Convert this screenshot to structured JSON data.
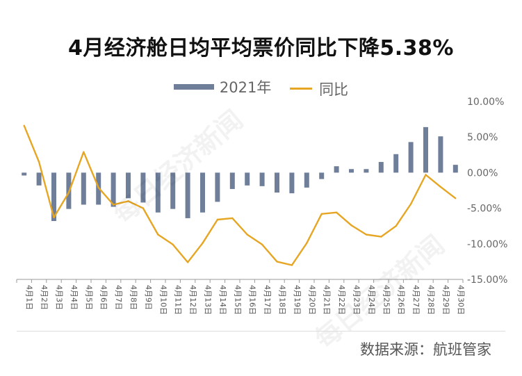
{
  "title": "4月经济舱日均平均票价同比下降5.38%",
  "source": "数据来源：航班管家",
  "watermark": "每日经济新闻",
  "colors": {
    "bar": "#6f7f9a",
    "line": "#e6a623",
    "axis": "#999999",
    "text": "#666666"
  },
  "chart_data": {
    "type": "bar+line",
    "categories": [
      "4月1日",
      "4月2日",
      "4月3日",
      "4月4日",
      "4月5日",
      "4月6日",
      "4月7日",
      "4月8日",
      "4月9日",
      "4月10日",
      "4月11日",
      "4月12日",
      "4月13日",
      "4月14日",
      "4月15日",
      "4月16日",
      "4月17日",
      "4月18日",
      "4月19日",
      "4月20日",
      "4月21日",
      "4月22日",
      "4月23日",
      "4月24日",
      "4月25日",
      "4月26日",
      "4月27日",
      "4月28日",
      "4月29日",
      "4月30日"
    ],
    "series": [
      {
        "name": "2021年",
        "type": "bar",
        "values": [
          -0.4,
          -1.8,
          -6.8,
          -5.1,
          -4.5,
          -4.5,
          -4.8,
          -3.6,
          -4.2,
          -5.6,
          -5.1,
          -6.4,
          -5.6,
          -4.1,
          -2.3,
          -1.8,
          -1.9,
          -2.8,
          -2.9,
          -2.1,
          -0.9,
          0.9,
          0.5,
          0.5,
          1.5,
          2.6,
          4.3,
          6.4,
          5.1,
          1.1
        ]
      },
      {
        "name": "同比",
        "type": "line",
        "values": [
          6.6,
          1.5,
          -6.3,
          -2.8,
          2.9,
          -2.1,
          -4.5,
          -4.0,
          -5.0,
          -8.7,
          -10.1,
          -12.6,
          -9.9,
          -6.6,
          -6.4,
          -8.7,
          -10.1,
          -12.5,
          -13.0,
          -9.9,
          -5.8,
          -5.6,
          -7.4,
          -8.7,
          -9.0,
          -7.5,
          -4.4,
          -0.3,
          -2.0,
          -3.6
        ]
      }
    ],
    "y_axis": {
      "position": "right",
      "min": -15,
      "max": 10,
      "step": 5,
      "tick_labels": [
        "10.00%",
        "5.00%",
        "0.00%",
        "-5.00%",
        "-10.00%",
        "-15.00%"
      ]
    },
    "grid": false,
    "legend_placement": "top-center"
  }
}
